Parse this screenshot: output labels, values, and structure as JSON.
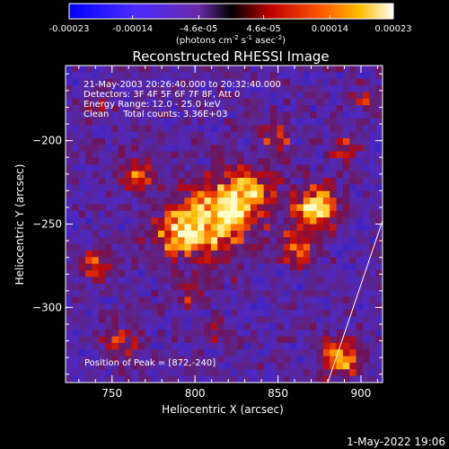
{
  "chart_data": {
    "type": "heatmap",
    "title": "Reconstructed RHESSI Image",
    "xlabel": "Heliocentric X (arcsec)",
    "ylabel": "Heliocentric Y (arcsec)",
    "xlim": [
      722,
      913
    ],
    "ylim": [
      -345,
      -155
    ],
    "x_ticks": [
      750,
      800,
      850,
      900
    ],
    "y_ticks": [
      -200,
      -250,
      -300
    ],
    "colorbar": {
      "label_main": "(photons cm",
      "label_exp1": "-2",
      "label_mid": " s",
      "label_exp2": "-1",
      "label_mid2": " asec",
      "label_exp3": "-2",
      "label_end": ")",
      "range": [
        -0.00023,
        0.00023
      ],
      "tick_values": [
        -0.00023,
        -0.00014,
        -4.6e-05,
        4.6e-05,
        0.00014,
        0.00023
      ],
      "tick_labels": [
        "-0.00023",
        "-0.00014",
        "-4.6e-05",
        "4.6e-05",
        "0.00014",
        "0.00023"
      ]
    },
    "annotations": {
      "time": "21-May-2003 20:26:40.000 to 20:32:40.000",
      "detectors": "Detectors: 3F 4F 5F 6F 7F 8F, Att 0",
      "energy": "Energy Range: 12.0 - 25.0 keV",
      "clean": "Clean     Total counts: 3.36E+03",
      "peak": "Position of Peak = [872,-240]"
    },
    "peak": {
      "x": 872,
      "y": -240
    },
    "limb_line": [
      [
        880,
        -345
      ],
      [
        913,
        -248
      ]
    ],
    "sources": [
      {
        "x": 815,
        "y": -245,
        "amp": 1.0,
        "r": 22
      },
      {
        "x": 790,
        "y": -255,
        "amp": 0.8,
        "r": 16
      },
      {
        "x": 835,
        "y": -230,
        "amp": 0.7,
        "r": 14
      },
      {
        "x": 872,
        "y": -240,
        "amp": 1.1,
        "r": 13
      },
      {
        "x": 860,
        "y": -265,
        "amp": 0.6,
        "r": 12
      },
      {
        "x": 848,
        "y": -198,
        "amp": 0.55,
        "r": 10
      },
      {
        "x": 765,
        "y": -220,
        "amp": 0.55,
        "r": 11
      },
      {
        "x": 740,
        "y": -275,
        "amp": 0.6,
        "r": 10
      },
      {
        "x": 755,
        "y": -320,
        "amp": 0.55,
        "r": 10
      },
      {
        "x": 800,
        "y": -290,
        "amp": 0.45,
        "r": 10
      },
      {
        "x": 888,
        "y": -330,
        "amp": 0.9,
        "r": 11
      },
      {
        "x": 905,
        "y": -175,
        "amp": 0.5,
        "r": 8
      },
      {
        "x": 812,
        "y": -315,
        "amp": 0.35,
        "r": 9
      },
      {
        "x": 890,
        "y": -205,
        "amp": 0.4,
        "r": 9
      },
      {
        "x": 740,
        "y": -180,
        "amp": 0.3,
        "r": 8
      }
    ]
  },
  "footer": {
    "date": "1-May-2022 19:06"
  }
}
